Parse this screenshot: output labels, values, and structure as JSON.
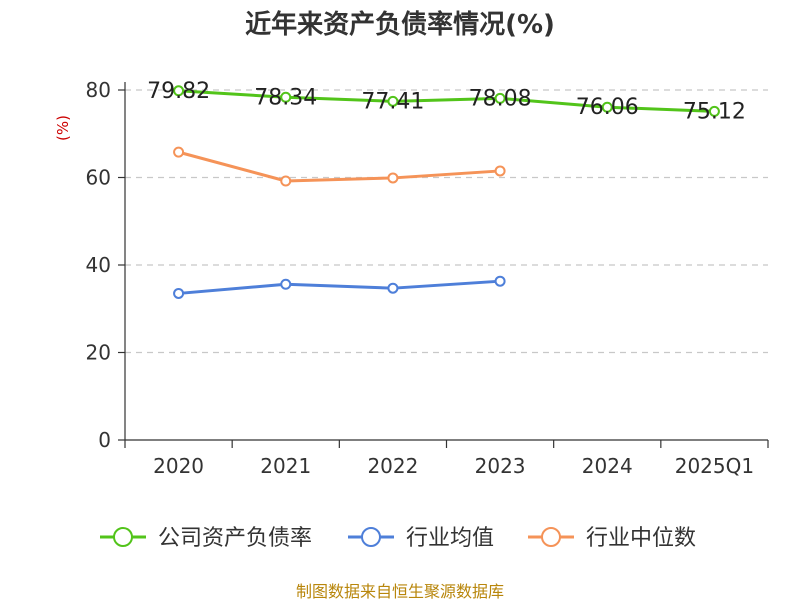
{
  "chart_data": {
    "type": "line",
    "title": "近年来资产负债率情况(%)",
    "ylabel": "(%)",
    "categories": [
      "2020",
      "2021",
      "2022",
      "2023",
      "2024",
      "2025Q1"
    ],
    "ylim": [
      0,
      80
    ],
    "yticks": [
      0,
      20,
      40,
      60,
      80
    ],
    "grid": true,
    "legend_position": "bottom",
    "series": [
      {
        "name": "公司资产负债率",
        "color": "#52c41a",
        "values": [
          79.82,
          78.34,
          77.41,
          78.08,
          76.06,
          75.12
        ],
        "labels": [
          "79.82",
          "78.34",
          "77.41",
          "78.08",
          "76.06",
          "75.12"
        ]
      },
      {
        "name": "行业均值",
        "color": "#4e7fd9",
        "values": [
          33.5,
          35.6,
          34.7,
          36.3,
          null,
          null
        ]
      },
      {
        "name": "行业中位数",
        "color": "#f59358",
        "values": [
          65.8,
          59.2,
          59.9,
          61.5,
          null,
          null
        ]
      }
    ]
  },
  "footer": {
    "source": "制图数据来自恒生聚源数据库"
  }
}
